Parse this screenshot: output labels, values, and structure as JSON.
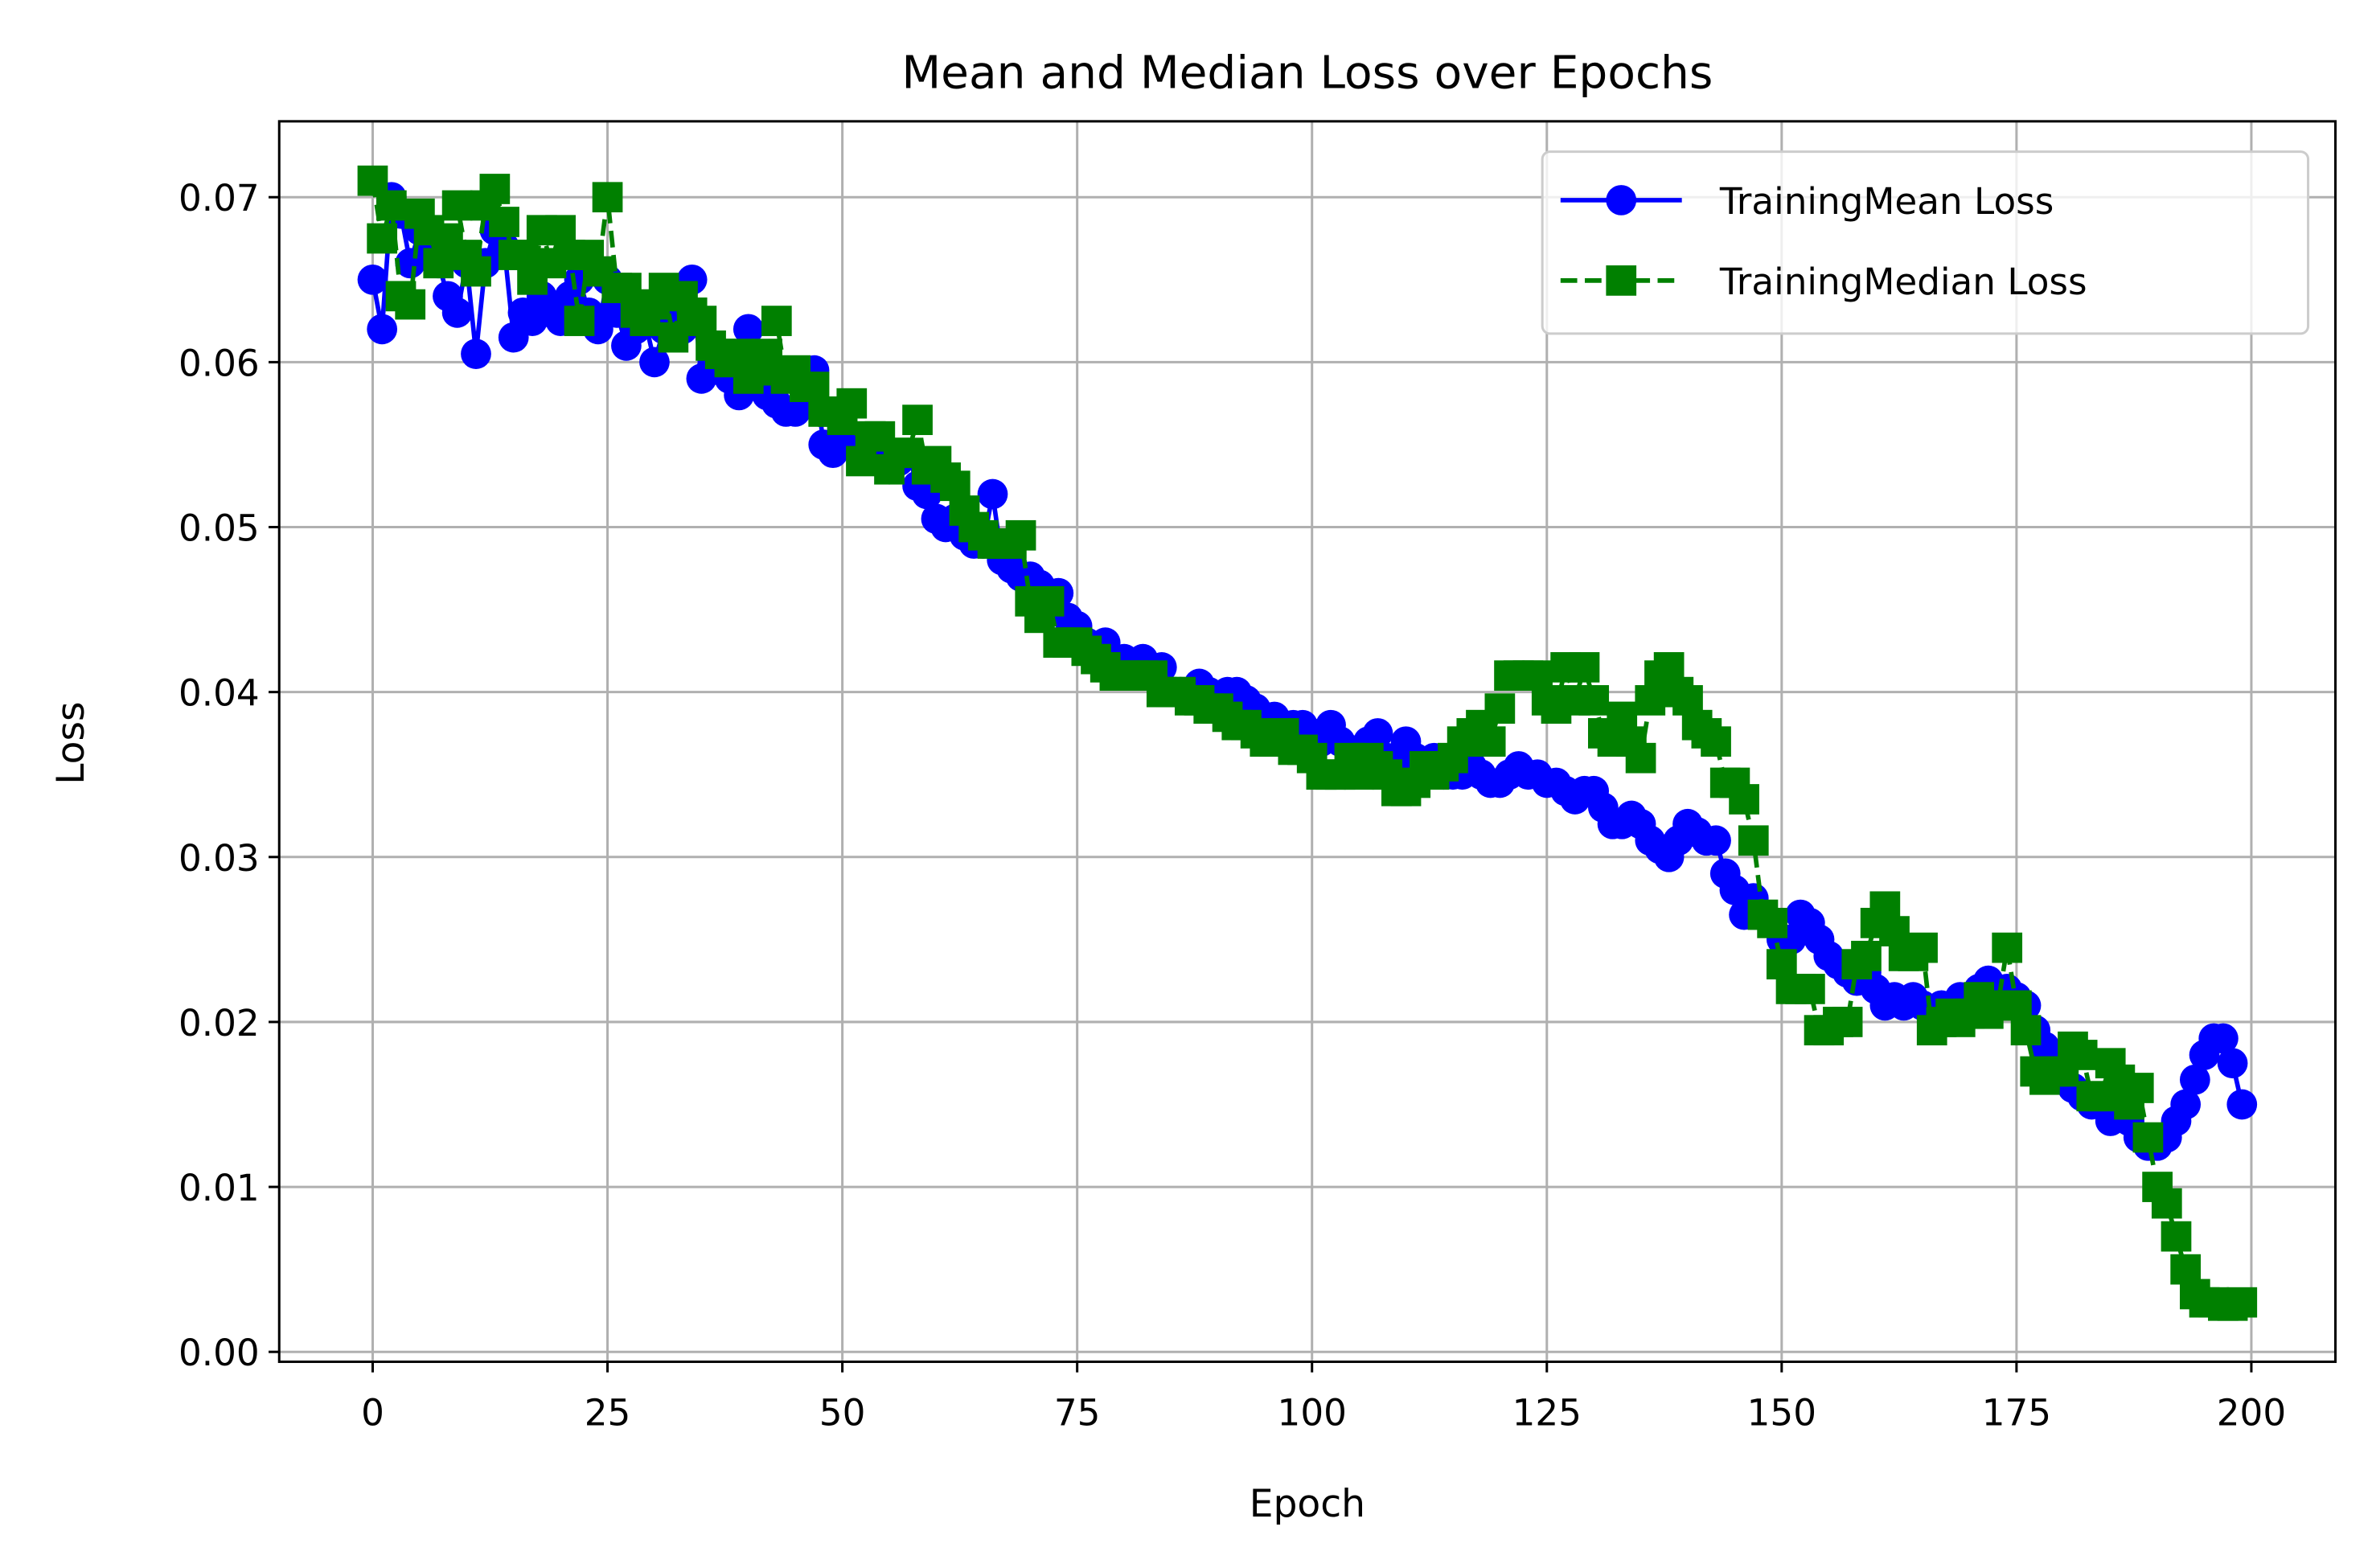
{
  "chart_data": {
    "type": "line",
    "title": "Mean and Median Loss over Epochs",
    "xlabel": "Epoch",
    "ylabel": "Loss",
    "x": [
      0,
      1,
      2,
      3,
      4,
      5,
      6,
      7,
      8,
      9,
      10,
      11,
      12,
      13,
      14,
      15,
      16,
      17,
      18,
      19,
      20,
      21,
      22,
      23,
      24,
      25,
      26,
      27,
      28,
      29,
      30,
      31,
      32,
      33,
      34,
      35,
      36,
      37,
      38,
      39,
      40,
      41,
      42,
      43,
      44,
      45,
      46,
      47,
      48,
      49,
      50,
      51,
      52,
      53,
      54,
      55,
      56,
      57,
      58,
      59,
      60,
      61,
      62,
      63,
      64,
      65,
      66,
      67,
      68,
      69,
      70,
      71,
      72,
      73,
      74,
      75,
      76,
      77,
      78,
      79,
      80,
      81,
      82,
      83,
      84,
      85,
      86,
      87,
      88,
      89,
      90,
      91,
      92,
      93,
      94,
      95,
      96,
      97,
      98,
      99,
      100,
      101,
      102,
      103,
      104,
      105,
      106,
      107,
      108,
      109,
      110,
      111,
      112,
      113,
      114,
      115,
      116,
      117,
      118,
      119,
      120,
      121,
      122,
      123,
      124,
      125,
      126,
      127,
      128,
      129,
      130,
      131,
      132,
      133,
      134,
      135,
      136,
      137,
      138,
      139,
      140,
      141,
      142,
      143,
      144,
      145,
      146,
      147,
      148,
      149,
      150,
      151,
      152,
      153,
      154,
      155,
      156,
      157,
      158,
      159,
      160,
      161,
      162,
      163,
      164,
      165,
      166,
      167,
      168,
      169,
      170,
      171,
      172,
      173,
      174,
      175,
      176,
      177,
      178,
      179,
      180,
      181,
      182,
      183,
      184,
      185,
      186,
      187,
      188,
      189,
      190,
      191,
      192,
      193,
      194,
      195,
      196,
      197,
      198,
      199
    ],
    "series": [
      {
        "name": "TrainingMean Loss",
        "color": "#0000ff",
        "linestyle": "solid",
        "marker": "circle",
        "values": [
          0.065,
          0.062,
          0.07,
          0.069,
          0.066,
          0.068,
          0.067,
          0.066,
          0.064,
          0.063,
          0.066,
          0.0605,
          0.066,
          0.068,
          0.067,
          0.0615,
          0.063,
          0.0625,
          0.064,
          0.063,
          0.0625,
          0.064,
          0.065,
          0.063,
          0.062,
          0.065,
          0.063,
          0.061,
          0.062,
          0.0625,
          0.06,
          0.062,
          0.063,
          0.062,
          0.065,
          0.059,
          0.0595,
          0.06,
          0.059,
          0.058,
          0.062,
          0.06,
          0.058,
          0.0575,
          0.057,
          0.057,
          0.058,
          0.0595,
          0.055,
          0.0545,
          0.056,
          0.055,
          0.0545,
          0.0545,
          0.054,
          0.0535,
          0.054,
          0.0545,
          0.0525,
          0.052,
          0.0505,
          0.05,
          0.0505,
          0.0495,
          0.049,
          0.049,
          0.052,
          0.048,
          0.0475,
          0.047,
          0.047,
          0.0465,
          0.046,
          0.046,
          0.0445,
          0.044,
          0.043,
          0.0425,
          0.043,
          0.042,
          0.042,
          0.0415,
          0.042,
          0.041,
          0.0415,
          0.04,
          0.04,
          0.04,
          0.0405,
          0.04,
          0.0395,
          0.04,
          0.04,
          0.0395,
          0.039,
          0.0385,
          0.0385,
          0.038,
          0.038,
          0.038,
          0.0375,
          0.037,
          0.038,
          0.037,
          0.0365,
          0.036,
          0.037,
          0.0375,
          0.036,
          0.0355,
          0.037,
          0.036,
          0.0355,
          0.036,
          0.035,
          0.035,
          0.035,
          0.0355,
          0.035,
          0.0345,
          0.0345,
          0.035,
          0.0355,
          0.035,
          0.035,
          0.0345,
          0.0345,
          0.034,
          0.0335,
          0.034,
          0.034,
          0.033,
          0.032,
          0.032,
          0.0325,
          0.032,
          0.031,
          0.0305,
          0.03,
          0.031,
          0.032,
          0.0315,
          0.031,
          0.031,
          0.029,
          0.028,
          0.0265,
          0.0275,
          0.0265,
          0.026,
          0.025,
          0.025,
          0.0265,
          0.026,
          0.025,
          0.024,
          0.0235,
          0.023,
          0.0225,
          0.023,
          0.022,
          0.021,
          0.0215,
          0.021,
          0.0215,
          0.021,
          0.0205,
          0.021,
          0.021,
          0.0215,
          0.0215,
          0.022,
          0.0225,
          0.022,
          0.022,
          0.0215,
          0.021,
          0.0195,
          0.0185,
          0.0175,
          0.017,
          0.016,
          0.0155,
          0.015,
          0.015,
          0.014,
          0.0145,
          0.014,
          0.013,
          0.0125,
          0.0125,
          0.013,
          0.014,
          0.015,
          0.0165,
          0.018,
          0.019,
          0.019,
          0.0175,
          0.015
        ]
      },
      {
        "name": "TrainingMedian Loss",
        "color": "#008000",
        "linestyle": "dashed",
        "marker": "square",
        "values": [
          0.071,
          0.0675,
          0.0695,
          0.064,
          0.0635,
          0.069,
          0.068,
          0.066,
          0.0675,
          0.0695,
          0.0665,
          0.0655,
          0.0695,
          0.0705,
          0.0685,
          0.0665,
          0.0665,
          0.065,
          0.068,
          0.066,
          0.068,
          0.0665,
          0.0625,
          0.0665,
          0.0655,
          0.07,
          0.0645,
          0.0645,
          0.063,
          0.0625,
          0.0635,
          0.0645,
          0.0615,
          0.064,
          0.063,
          0.0625,
          0.061,
          0.0605,
          0.06,
          0.0605,
          0.059,
          0.0595,
          0.0605,
          0.0625,
          0.059,
          0.0595,
          0.0585,
          0.0585,
          0.057,
          0.057,
          0.0565,
          0.0575,
          0.054,
          0.0555,
          0.0555,
          0.0535,
          0.0545,
          0.0545,
          0.0565,
          0.0535,
          0.054,
          0.053,
          0.0525,
          0.051,
          0.05,
          0.0495,
          0.049,
          0.049,
          0.049,
          0.0495,
          0.0455,
          0.0445,
          0.0455,
          0.043,
          0.043,
          0.043,
          0.0425,
          0.042,
          0.0415,
          0.041,
          0.041,
          0.041,
          0.041,
          0.041,
          0.04,
          0.04,
          0.04,
          0.0395,
          0.0395,
          0.039,
          0.039,
          0.0385,
          0.038,
          0.038,
          0.0375,
          0.037,
          0.037,
          0.0375,
          0.0365,
          0.0365,
          0.036,
          0.035,
          0.035,
          0.035,
          0.036,
          0.035,
          0.036,
          0.0355,
          0.035,
          0.034,
          0.034,
          0.0345,
          0.0355,
          0.035,
          0.0355,
          0.036,
          0.037,
          0.0375,
          0.038,
          0.037,
          0.039,
          0.041,
          0.041,
          0.041,
          0.041,
          0.0395,
          0.039,
          0.0415,
          0.0395,
          0.0415,
          0.0395,
          0.0375,
          0.037,
          0.0385,
          0.037,
          0.036,
          0.0395,
          0.041,
          0.0415,
          0.04,
          0.0395,
          0.038,
          0.0375,
          0.037,
          0.0345,
          0.0345,
          0.0335,
          0.031,
          0.0265,
          0.026,
          0.0235,
          0.022,
          0.022,
          0.022,
          0.0195,
          0.0195,
          0.02,
          0.02,
          0.0235,
          0.024,
          0.026,
          0.027,
          0.0255,
          0.024,
          0.024,
          0.0245,
          0.0195,
          0.02,
          0.0205,
          0.02,
          0.0205,
          0.0215,
          0.0205,
          0.021,
          0.0245,
          0.021,
          0.0195,
          0.017,
          0.0165,
          0.017,
          0.017,
          0.0185,
          0.018,
          0.0155,
          0.0155,
          0.0175,
          0.0165,
          0.015,
          0.016,
          0.013,
          0.01,
          0.009,
          0.007,
          0.005,
          0.0035,
          0.003,
          0.003,
          0.0028,
          0.0028,
          0.003
        ]
      }
    ],
    "xlim": [
      -9.95,
      208.95
    ],
    "xticks": [
      0,
      25,
      50,
      75,
      100,
      125,
      150,
      175,
      200
    ],
    "ylim": [
      -0.0006,
      0.0746
    ],
    "yticks": [
      {
        "value": 0,
        "label": "0.00"
      },
      0.01,
      0.02,
      0.03,
      0.04,
      0.05,
      0.06,
      0.07
    ],
    "grid": true,
    "legend": "upper right"
  }
}
